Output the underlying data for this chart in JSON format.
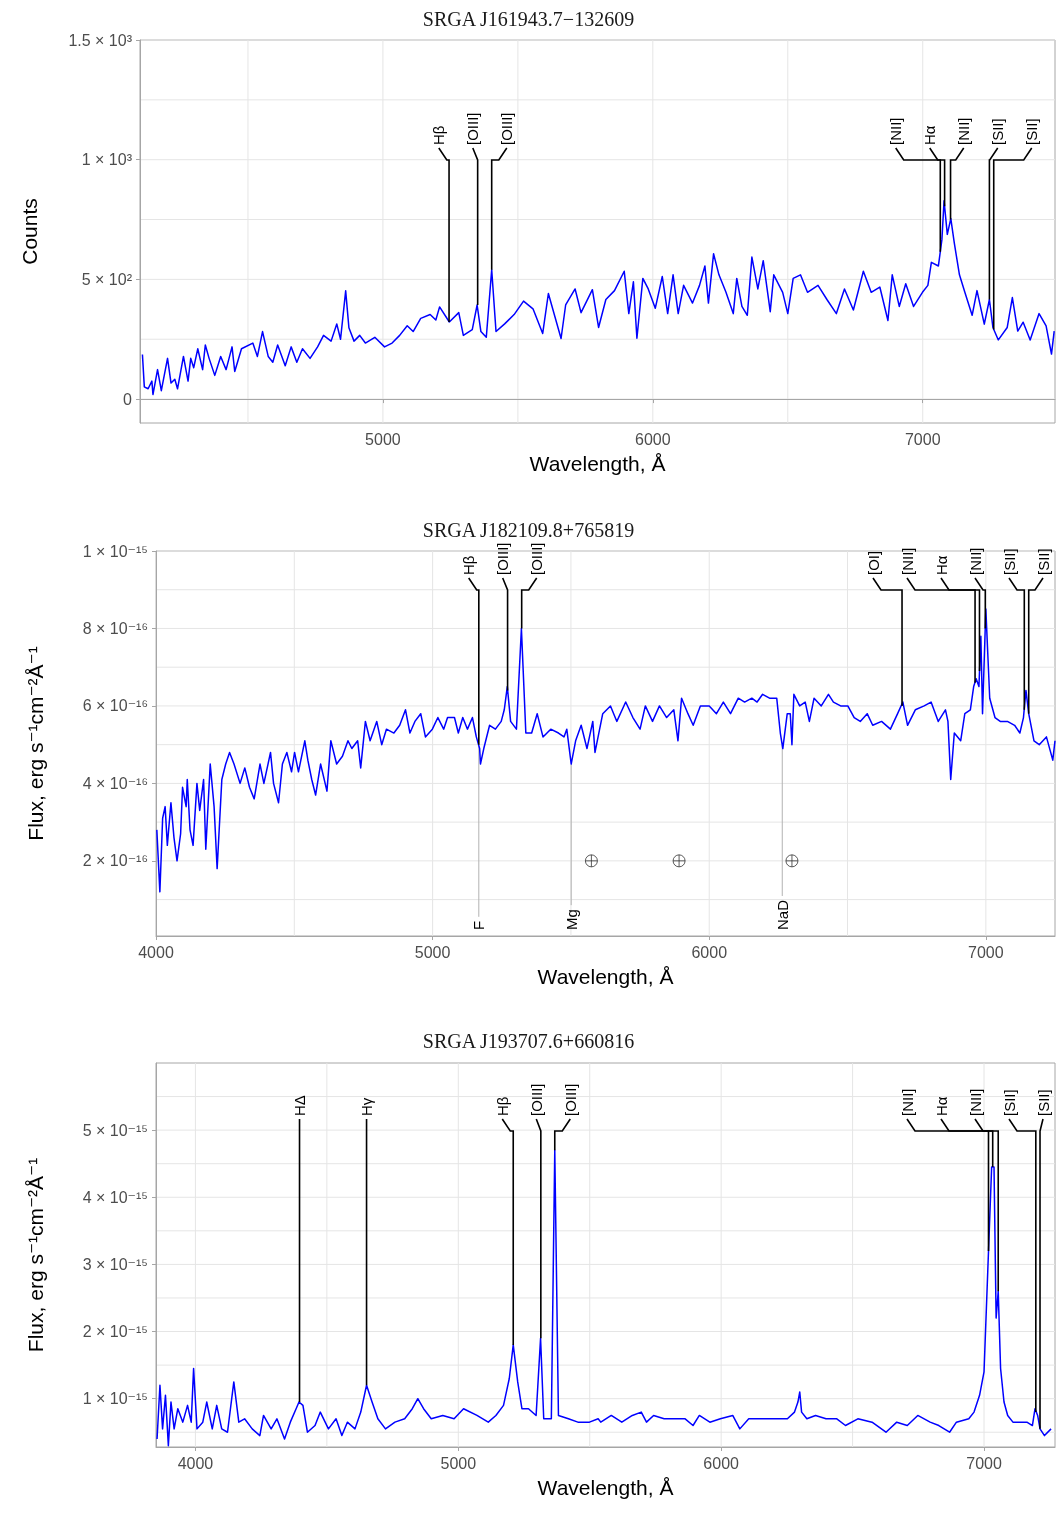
{
  "chart_data": [
    {
      "type": "line",
      "title": "SRGA J161943.7−132609",
      "xlabel": "Wavelength, Å",
      "ylabel": "Counts",
      "grid": true,
      "xlim": [
        4100,
        7490
      ],
      "xticks": [
        {
          "value": 4500,
          "label": null
        },
        5000,
        {
          "value": 5500,
          "label": null
        },
        6000,
        {
          "value": 6500,
          "label": null
        },
        7000
      ],
      "ylim": [
        -100,
        1500
      ],
      "yticks": [
        0,
        {
          "value": 250,
          "label": null
        },
        {
          "value": 500,
          "label": "5 × 10²"
        },
        {
          "value": 750,
          "label": null
        },
        {
          "value": 1000,
          "label": "1 × 10³"
        },
        {
          "value": 1250,
          "label": null
        },
        {
          "value": 1500,
          "label": "1.5 × 10³"
        }
      ],
      "series": [
        {
          "color": "#0000ff",
          "x": [
            4109,
            4116,
            4130,
            4144,
            4148,
            4165,
            4179,
            4202,
            4215,
            4229,
            4239,
            4261,
            4278,
            4288,
            4299,
            4314,
            4332,
            4342,
            4356,
            4377,
            4399,
            4419,
            4441,
            4451,
            4476,
            4518,
            4535,
            4554,
            4575,
            4592,
            4610,
            4638,
            4660,
            4681,
            4702,
            4730,
            4758,
            4780,
            4808,
            4829,
            4843,
            4862,
            4874,
            4893,
            4914,
            4935,
            4970,
            5006,
            5034,
            5062,
            5090,
            5112,
            5140,
            5175,
            5196,
            5210,
            5246,
            5281,
            5298,
            5331,
            5349,
            5363,
            5383,
            5403,
            5419,
            5451,
            5486,
            5521,
            5556,
            5592,
            5613,
            5660,
            5677,
            5712,
            5734,
            5776,
            5799,
            5826,
            5858,
            5894,
            5911,
            5928,
            5941,
            5963,
            5983,
            6009,
            6035,
            6055,
            6075,
            6094,
            6114,
            6147,
            6173,
            6193,
            6206,
            6225,
            6245,
            6271,
            6298,
            6311,
            6330,
            6350,
            6367,
            6389,
            6409,
            6435,
            6448,
            6481,
            6500,
            6520,
            6547,
            6573,
            6612,
            6645,
            6680,
            6710,
            6743,
            6780,
            6809,
            6841,
            6871,
            6887,
            6913,
            6937,
            6966,
            6999,
            7019,
            7032,
            7058,
            7071,
            7079,
            7091,
            7104,
            7117,
            7136,
            7156,
            7183,
            7201,
            7228,
            7247,
            7260,
            7280,
            7313,
            7332,
            7352,
            7372,
            7398,
            7431,
            7457,
            7477,
            7487
          ],
          "values": [
            186,
            51,
            43,
            75,
            19,
            123,
            35,
            170,
            67,
            83,
            43,
            178,
            75,
            170,
            131,
            210,
            123,
            226,
            170,
            99,
            178,
            123,
            218,
            115,
            210,
            234,
            178,
            282,
            178,
            154,
            226,
            139,
            218,
            154,
            210,
            170,
            218,
            266,
            242,
            314,
            250,
            452,
            298,
            242,
            266,
            234,
            258,
            218,
            234,
            266,
            306,
            282,
            337,
            353,
            330,
            385,
            322,
            361,
            266,
            290,
            393,
            282,
            258,
            540,
            282,
            314,
            353,
            409,
            377,
            274,
            441,
            253,
            393,
            460,
            361,
            457,
            299,
            416,
            453,
            534,
            357,
            490,
            254,
            504,
            460,
            379,
            512,
            357,
            519,
            357,
            475,
            401,
            475,
            556,
            401,
            607,
            519,
            446,
            357,
            504,
            387,
            350,
            593,
            460,
            578,
            365,
            519,
            446,
            357,
            504,
            519,
            446,
            475,
            416,
            357,
            460,
            372,
            534,
            446,
            468,
            328,
            519,
            387,
            482,
            387,
            446,
            475,
            571,
            556,
            666,
            828,
            688,
            754,
            651,
            519,
            446,
            350,
            453,
            313,
            416,
            299,
            247,
            299,
            424,
            284,
            321,
            247,
            357,
            306,
            188,
            284
          ]
        }
      ],
      "annotations": [
        {
          "text": "Hβ",
          "x": 5245,
          "y": 322
        },
        {
          "text": "[OIII]",
          "x": 5351,
          "y": 393
        },
        {
          "text": "[OIII]",
          "x": 5403,
          "y": 540
        },
        {
          "text": "[NII]",
          "x": 7065,
          "y": 615
        },
        {
          "text": "Hα",
          "x": 7081,
          "y": 805
        },
        {
          "text": "[NII]",
          "x": 7103,
          "y": 750
        },
        {
          "text": "[SII]",
          "x": 7247,
          "y": 416
        },
        {
          "text": "[SII]",
          "x": 7263,
          "y": 291
        }
      ]
    },
    {
      "type": "line",
      "title": "SRGA J182109.8+765819",
      "xlabel": "Wavelength, Å",
      "ylabel": "Flux, erg s⁻¹cm⁻²Å⁻¹",
      "grid": true,
      "xlim": [
        4000,
        7250
      ],
      "xticks": [
        4000,
        {
          "value": 4500,
          "label": null
        },
        5000,
        {
          "value": 5500,
          "label": null
        },
        6000,
        {
          "value": 6500,
          "label": null
        },
        7000
      ],
      "ylim": [
        6e-18,
        1e-15
      ],
      "yticks": [
        {
          "value": 1e-16,
          "label": null
        },
        {
          "value": 2e-16,
          "label": "2 × 10⁻¹⁶"
        },
        {
          "value": 3e-16,
          "label": null
        },
        {
          "value": 4e-16,
          "label": "4 × 10⁻¹⁶"
        },
        {
          "value": 5e-16,
          "label": null
        },
        {
          "value": 6e-16,
          "label": "6 × 10⁻¹⁶"
        },
        {
          "value": 7e-16,
          "label": null
        },
        {
          "value": 8e-16,
          "label": "8 × 10⁻¹⁶"
        },
        {
          "value": 9e-16,
          "label": null
        },
        {
          "value": 1e-15,
          "label": "1 × 10⁻¹⁵"
        }
      ],
      "series": [
        {
          "color": "#0000ff",
          "x": [
            4003,
            4014,
            4024,
            4033,
            4041,
            4054,
            4065,
            4076,
            4089,
            4096,
            4109,
            4113,
            4123,
            4134,
            4148,
            4158,
            4172,
            4180,
            4196,
            4210,
            4221,
            4238,
            4252,
            4266,
            4282,
            4304,
            4321,
            4338,
            4355,
            4376,
            4390,
            4414,
            4425,
            4443,
            4457,
            4473,
            4490,
            4501,
            4515,
            4538,
            4549,
            4563,
            4577,
            4595,
            4618,
            4632,
            4653,
            4674,
            4694,
            4708,
            4729,
            4740,
            4757,
            4774,
            4798,
            4816,
            4833,
            4860,
            4881,
            4902,
            4918,
            4936,
            4957,
            4974,
            4999,
            5019,
            5040,
            5054,
            5079,
            5093,
            5109,
            5126,
            5144,
            5158,
            5170,
            5173,
            5185,
            5206,
            5227,
            5248,
            5259,
            5270,
            5282,
            5303,
            5321,
            5337,
            5358,
            5378,
            5399,
            5427,
            5455,
            5475,
            5485,
            5501,
            5517,
            5537,
            5558,
            5579,
            5587,
            5615,
            5643,
            5666,
            5698,
            5724,
            5750,
            5769,
            5795,
            5820,
            5846,
            5872,
            5887,
            5900,
            5923,
            5942,
            5968,
            6000,
            6026,
            6051,
            6077,
            6105,
            6128,
            6154,
            6173,
            6193,
            6218,
            6244,
            6257,
            6266,
            6282,
            6293,
            6299,
            6306,
            6327,
            6347,
            6362,
            6379,
            6405,
            6431,
            6449,
            6475,
            6501,
            6524,
            6546,
            6571,
            6591,
            6623,
            6655,
            6681,
            6700,
            6717,
            6745,
            6777,
            6802,
            6828,
            6854,
            6863,
            6873,
            6886,
            6909,
            6924,
            6944,
            6956,
            6965,
            6975,
            6982,
            6988,
            7000,
            7014,
            7033,
            7052,
            7078,
            7104,
            7123,
            7136,
            7145,
            7155,
            7174,
            7193,
            7219,
            7242,
            7250
          ],
          "values": [
            2.8e-16,
            1.2e-16,
            3.1e-16,
            3.4e-16,
            2.4e-16,
            3.5e-16,
            2.6e-16,
            2e-16,
            2.7e-16,
            3.9e-16,
            3.4e-16,
            4.1e-16,
            2.8e-16,
            2.4e-16,
            4e-16,
            3.3e-16,
            4.1e-16,
            2.3e-16,
            4.5e-16,
            3.4e-16,
            1.8e-16,
            4.1e-16,
            4.5e-16,
            4.8e-16,
            4.5e-16,
            4e-16,
            4.4e-16,
            3.9e-16,
            3.6e-16,
            4.5e-16,
            4e-16,
            4.8e-16,
            4e-16,
            3.5e-16,
            4.5e-16,
            4.8e-16,
            4.3e-16,
            4.8e-16,
            4.3e-16,
            5.1e-16,
            4.6e-16,
            4.1e-16,
            3.7e-16,
            4.5e-16,
            3.8e-16,
            5.1e-16,
            4.5e-16,
            4.7e-16,
            5.1e-16,
            4.9e-16,
            5.1e-16,
            4.4e-16,
            5.6e-16,
            5.1e-16,
            5.6e-16,
            5e-16,
            5.4e-16,
            5.3e-16,
            5.5e-16,
            5.9e-16,
            5.3e-16,
            5.6e-16,
            5.8e-16,
            5.2e-16,
            5.4e-16,
            5.7e-16,
            5.4e-16,
            5.7e-16,
            5.7e-16,
            5.3e-16,
            5.7e-16,
            5.4e-16,
            5.7e-16,
            5.2e-16,
            4.9e-16,
            4.5e-16,
            4.9e-16,
            5.5e-16,
            5.4e-16,
            5.6e-16,
            5.9e-16,
            6.5e-16,
            5.6e-16,
            5.4e-16,
            8e-16,
            5.3e-16,
            5.3e-16,
            5.8e-16,
            5.2e-16,
            5.4e-16,
            5.3e-16,
            5.2e-16,
            5.4e-16,
            4.5e-16,
            5.1e-16,
            5.5e-16,
            4.9e-16,
            5.6e-16,
            4.8e-16,
            5.8e-16,
            6e-16,
            5.6e-16,
            6.1e-16,
            5.7e-16,
            5.4e-16,
            6e-16,
            5.6e-16,
            6e-16,
            5.7e-16,
            5.9e-16,
            5.1e-16,
            6.2e-16,
            5.8e-16,
            5.5e-16,
            6e-16,
            6e-16,
            5.8e-16,
            6.1e-16,
            5.8e-16,
            6.2e-16,
            6.1e-16,
            6.2e-16,
            6.1e-16,
            6.3e-16,
            6.2e-16,
            6.2e-16,
            5.3e-16,
            4.9e-16,
            5.8e-16,
            5.8e-16,
            5e-16,
            6.3e-16,
            6e-16,
            6.1e-16,
            5.6e-16,
            6.2e-16,
            6e-16,
            6.3e-16,
            6.1e-16,
            6e-16,
            6e-16,
            5.7e-16,
            5.6e-16,
            5.8e-16,
            5.5e-16,
            5.6e-16,
            5.4e-16,
            5.8e-16,
            6.1e-16,
            5.5e-16,
            5.9e-16,
            6e-16,
            6.1e-16,
            5.6e-16,
            5.9e-16,
            5.6e-16,
            4.1e-16,
            5.3e-16,
            5.1e-16,
            5.8e-16,
            5.9e-16,
            6.5e-16,
            6.7e-16,
            6.5e-16,
            7.8e-16,
            5.8e-16,
            8.5e-16,
            6.2e-16,
            5.7e-16,
            5.6e-16,
            5.6e-16,
            5.5e-16,
            5.3e-16,
            5.7e-16,
            6.4e-16,
            5.8e-16,
            5.1e-16,
            5e-16,
            5.2e-16,
            4.6e-16,
            5.1e-16
          ]
        },
        {
          "type": "scatter",
          "color": "#333333",
          "marker": "cross",
          "x": [
            5574,
            5891,
            6299
          ],
          "values": [
            2e-16,
            2e-16,
            2e-16
          ]
        }
      ],
      "ref_lines": [
        {
          "axis": "x",
          "value": 5167,
          "label": "F",
          "color": "#b3b3b3"
        },
        {
          "axis": "x",
          "value": 5501,
          "label": "Mg",
          "color": "#b3b3b3"
        },
        {
          "axis": "x",
          "value": 6264,
          "label": "NaD",
          "color": "#b3b3b3"
        }
      ],
      "annotations": [
        {
          "text": "Hβ",
          "x": 5167,
          "y": 5e-16
        },
        {
          "text": "[OIII]",
          "x": 5271,
          "y": 6.4e-16
        },
        {
          "text": "[OIII]",
          "x": 5322,
          "y": 8e-16
        },
        {
          "text": "[OI]",
          "x": 6697,
          "y": 6e-16
        },
        {
          "text": "[NII]",
          "x": 6961,
          "y": 6.6e-16
        },
        {
          "text": "Hα",
          "x": 6977,
          "y": 6.9e-16
        },
        {
          "text": "[NII]",
          "x": 6998,
          "y": 8e-16
        },
        {
          "text": "[SII]",
          "x": 7139,
          "y": 5.9e-16
        },
        {
          "text": "[SII]",
          "x": 7155,
          "y": 5.8e-16
        }
      ]
    },
    {
      "type": "line",
      "title": "SRGA J193707.6+660816",
      "xlabel": "Wavelength, Å",
      "ylabel": "Flux, erg s⁻¹cm⁻²Å⁻¹",
      "grid": true,
      "xlim": [
        3850,
        7270
      ],
      "xticks": [
        4000,
        {
          "value": 4500,
          "label": null
        },
        5000,
        {
          "value": 5500,
          "label": null
        },
        6000,
        {
          "value": 6500,
          "label": null
        },
        7000
      ],
      "ylim": [
        2.8e-16,
        6e-15
      ],
      "yticks": [
        {
          "value": 5e-16,
          "label": null
        },
        {
          "value": 1e-15,
          "label": "1 × 10⁻¹⁵"
        },
        {
          "value": 1.5e-15,
          "label": null
        },
        {
          "value": 2e-15,
          "label": "2 × 10⁻¹⁵"
        },
        {
          "value": 2.5e-15,
          "label": null
        },
        {
          "value": 3e-15,
          "label": "3 × 10⁻¹⁵"
        },
        {
          "value": 3.5e-15,
          "label": null
        },
        {
          "value": 4e-15,
          "label": "4 × 10⁻¹⁵"
        },
        {
          "value": 4.5e-15,
          "label": null
        },
        {
          "value": 5e-15,
          "label": "5 × 10⁻¹⁵"
        },
        {
          "value": 5.5e-15,
          "label": null
        }
      ],
      "series": [
        {
          "color": "#0000ff",
          "x": [
            3854,
            3865,
            3875,
            3886,
            3897,
            3907,
            3919,
            3933,
            3952,
            3970,
            3984,
            3993,
            4006,
            4028,
            4043,
            4064,
            4081,
            4100,
            4122,
            4146,
            4165,
            4187,
            4216,
            4245,
            4259,
            4288,
            4310,
            4339,
            4361,
            4383,
            4394,
            4409,
            4426,
            4455,
            4475,
            4506,
            4535,
            4557,
            4578,
            4607,
            4629,
            4651,
            4672,
            4694,
            4723,
            4759,
            4796,
            4825,
            4846,
            4868,
            4897,
            4941,
            4984,
            5020,
            5071,
            5114,
            5143,
            5172,
            5194,
            5209,
            5226,
            5242,
            5267,
            5296,
            5313,
            5325,
            5354,
            5367,
            5381,
            5419,
            5455,
            5499,
            5532,
            5542,
            5582,
            5622,
            5662,
            5696,
            5716,
            5743,
            5783,
            5823,
            5863,
            5893,
            5917,
            5957,
            5997,
            6044,
            6071,
            6105,
            6158,
            6212,
            6252,
            6279,
            6292,
            6299,
            6306,
            6326,
            6359,
            6399,
            6440,
            6473,
            6520,
            6574,
            6627,
            6668,
            6708,
            6748,
            6795,
            6828,
            6869,
            6895,
            6942,
            6962,
            6983,
            7000,
            7009,
            7019,
            7029,
            7038,
            7046,
            7054,
            7063,
            7076,
            7090,
            7110,
            7137,
            7163,
            7184,
            7194,
            7204,
            7213,
            7230,
            7255
          ],
          "values": [
            4e-16,
            1.2e-15,
            5.5e-16,
            1.05e-15,
            3e-16,
            9.5e-16,
            5.5e-16,
            8.5e-16,
            6.5e-16,
            9e-16,
            6.5e-16,
            1.45e-15,
            5.5e-16,
            6.5e-16,
            9.5e-16,
            5.5e-16,
            9e-16,
            5.5e-16,
            5e-16,
            1.25e-15,
            6.5e-16,
            7e-16,
            5.5e-16,
            4.5e-16,
            7.5e-16,
            5.5e-16,
            7e-16,
            4e-16,
            6.5e-16,
            8.5e-16,
            9.5e-16,
            9e-16,
            5e-16,
            6e-16,
            8e-16,
            5.5e-16,
            7e-16,
            4.5e-16,
            6.5e-16,
            5.5e-16,
            8e-16,
            1.2e-15,
            9.5e-16,
            7e-16,
            5.5e-16,
            6.5e-16,
            7e-16,
            8.5e-16,
            1e-15,
            8.5e-16,
            7e-16,
            7.5e-16,
            7e-16,
            8.5e-16,
            7.5e-16,
            6.5e-16,
            7.5e-16,
            9e-16,
            1.3e-15,
            1.8e-15,
            1.25e-15,
            8.5e-16,
            8.5e-16,
            7.5e-16,
            1.9e-15,
            7e-16,
            7e-16,
            4.7e-15,
            7.5e-16,
            7e-16,
            6.5e-16,
            6.5e-16,
            7e-16,
            6.5e-16,
            7.5e-16,
            6.5e-16,
            7.5e-16,
            8e-16,
            6.5e-16,
            7.5e-16,
            7e-16,
            7e-16,
            7e-16,
            6e-16,
            7.5e-16,
            6.5e-16,
            7e-16,
            7.5e-16,
            5.5e-16,
            7e-16,
            7e-16,
            7e-16,
            7e-16,
            8e-16,
            9.5e-16,
            1.1e-15,
            8e-16,
            7e-16,
            7.5e-16,
            7e-16,
            7e-16,
            6e-16,
            7e-16,
            6.5e-16,
            5e-16,
            6.5e-16,
            6e-16,
            7.5e-16,
            6.5e-16,
            6e-16,
            5e-16,
            6.5e-16,
            7e-16,
            8e-16,
            1.05e-15,
            1.4e-15,
            2.35e-15,
            3.4e-15,
            4.45e-15,
            4.45e-15,
            2.2e-15,
            2.6e-15,
            1.45e-15,
            9.5e-16,
            7.5e-16,
            6.5e-16,
            6.5e-16,
            6.5e-16,
            6e-16,
            8.5e-16,
            7.5e-16,
            5.5e-16,
            4.5e-16,
            5.5e-16
          ]
        }
      ],
      "annotations": [
        {
          "text": "HΔ",
          "x": 4396,
          "y": 9.5e-16
        },
        {
          "text": "Hγ",
          "x": 4651,
          "y": 1.2e-15
        },
        {
          "text": "Hβ",
          "x": 5209,
          "y": 1.8e-15
        },
        {
          "text": "[OIII]",
          "x": 5314,
          "y": 1.9e-15
        },
        {
          "text": "[OIII]",
          "x": 5367,
          "y": 4.7e-15
        },
        {
          "text": "[NII]",
          "x": 7017,
          "y": 3.2e-15
        },
        {
          "text": "Hα",
          "x": 7033,
          "y": 4.45e-15
        },
        {
          "text": "[NII]",
          "x": 7054,
          "y": 2.6e-15
        },
        {
          "text": "[SII]",
          "x": 7197,
          "y": 8e-16
        },
        {
          "text": "[SII]",
          "x": 7213,
          "y": 5.5e-16
        }
      ]
    }
  ]
}
